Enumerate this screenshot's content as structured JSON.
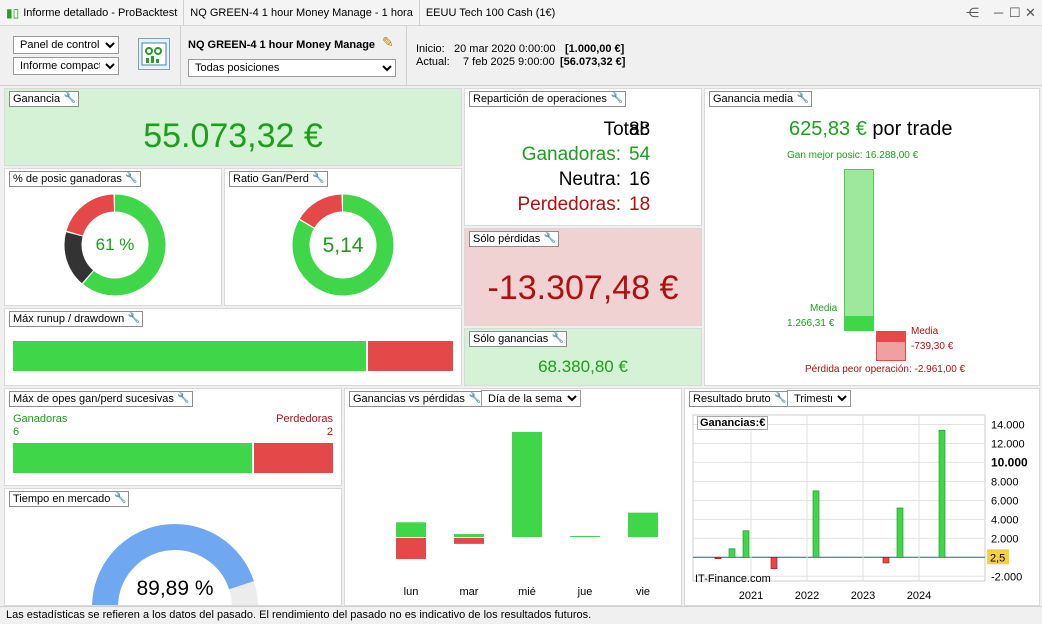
{
  "titlebar": {
    "app_title": "Informe detallado - ProBacktest",
    "strategy": "NQ GREEN-4 1 hour Money Manage - 1 hora",
    "instrument": "EEUU Tech 100 Cash (1€)"
  },
  "toolbar": {
    "view_select": "Panel de control",
    "report_select": "Informe compacto",
    "strategy_name": "NQ GREEN-4 1 hour Money Manage",
    "positions_select": "Todas posiciones",
    "start_label": "Inicio:",
    "start_date": "20 mar 2020 0:00:00",
    "start_value": "[1.000,00 €]",
    "current_label": "Actual:",
    "current_date": "7 feb 2025 9:00:00",
    "current_value": "[56.073,32 €]"
  },
  "ganancia": {
    "title": "Ganancia",
    "value": "55.073,32 €"
  },
  "pct_ganadoras": {
    "title": "% de posic ganadoras",
    "value": "61 %",
    "win": 54,
    "neutral": 16,
    "loss": 18
  },
  "ratio": {
    "title": "Ratio Gan/Perd",
    "value": "5,14",
    "win_fraction": 0.837
  },
  "runup": {
    "title": "Máx runup / drawdown",
    "runup_fraction": 0.804
  },
  "reparticion": {
    "title": "Repartición de operaciones",
    "total_label": "Total:",
    "total": "88",
    "win_label": "Ganadoras:",
    "win": "54",
    "neutral_label": "Neutra:",
    "neutral": "16",
    "loss_label": "Perdedoras:",
    "loss": "18"
  },
  "solo_perdidas": {
    "title": "Sólo pérdidas",
    "value": "-13.307,48 €"
  },
  "solo_ganancias": {
    "title": "Sólo ganancias",
    "value": "68.380,80 €"
  },
  "ganancia_media": {
    "title": "Ganancia media",
    "value": "625,83 €",
    "suffix": "por trade",
    "best_label": "Gan mejor posic: 16.288,00 €",
    "media_win_label": "Media",
    "media_win_value": "1.266,31 €",
    "media_loss_label": "Media",
    "media_loss_value": "-739,30 €",
    "worst_label": "Pérdida peor operación: -2.961,00 €"
  },
  "sucesivas": {
    "title": "Máx de opes gan/perd sucesivas",
    "win_label": "Ganadoras",
    "win_value": "6",
    "loss_label": "Perdedoras",
    "loss_value": "2",
    "win_fraction": 0.75
  },
  "tiempo": {
    "title": "Tiempo en mercado",
    "value": "89,89 %",
    "fraction": 0.8989
  },
  "ganancias_vs": {
    "title": "Ganancias vs pérdidas",
    "dropdown": "Día de la semana",
    "days": [
      "lun",
      "mar",
      "mié",
      "jue",
      "vie"
    ]
  },
  "resultado": {
    "title": "Resultado bruto",
    "dropdown": "Trimestral",
    "legend": "Ganancias:€",
    "watermark": "IT-Finance.com",
    "current_marker": "2,5"
  },
  "footer": {
    "disclaimer": "Las estadísticas se refieren a los datos del pasado. El rendimiento del pasado no es indicativo de los resultados futuros."
  },
  "colors": {
    "green": "#3fd64a",
    "red": "#e44848",
    "dark_green": "#1aa01a",
    "dark_red": "#b01010",
    "blue": "#6fa8f0"
  },
  "chart_data": [
    {
      "type": "bar",
      "title": "Ganancias vs pérdidas",
      "categories": [
        "lun",
        "mar",
        "mié",
        "jue",
        "vie"
      ],
      "series": [
        {
          "name": "Ganancias",
          "values": [
            1750,
            350,
            12500,
            120,
            2900
          ]
        },
        {
          "name": "Pérdidas",
          "values": [
            -2500,
            -700,
            0,
            0,
            0
          ]
        }
      ]
    },
    {
      "type": "bar",
      "title": "Resultado bruto",
      "x": [
        "2020Q1",
        "2020Q2",
        "2020Q3",
        "2020Q4",
        "2021Q1",
        "2021Q2",
        "2021Q3",
        "2021Q4",
        "2022Q1",
        "2022Q2",
        "2022Q3",
        "2022Q4",
        "2023Q1",
        "2023Q2",
        "2023Q3",
        "2023Q4",
        "2024Q1",
        "2024Q2",
        "2024Q3",
        "2024Q4"
      ],
      "values": [
        0,
        -150,
        900,
        2800,
        0,
        -1200,
        0,
        0,
        7000,
        0,
        0,
        0,
        0,
        -600,
        5200,
        0,
        0,
        13400,
        0,
        0
      ],
      "x_tick_labels": [
        "2021",
        "2022",
        "2023",
        "2024"
      ],
      "y_tick_labels": [
        "14.000",
        "12.000",
        "10.000",
        "8.000",
        "6.000",
        "4.000",
        "2.000",
        "-2.000"
      ],
      "ylim": [
        -2500,
        15000
      ],
      "grid": true
    }
  ]
}
